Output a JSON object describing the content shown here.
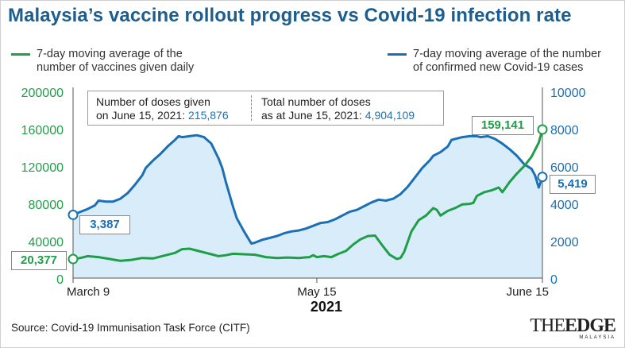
{
  "title": "Malaysia’s vaccine rollout progress vs Covid-19 infection rate",
  "legend": {
    "vaccines_line1": "7-day moving average of the",
    "vaccines_line2": "number of vaccines given daily",
    "cases_line1": "7-day moving average of the number",
    "cases_line2": "of confirmed new Covid-19 cases"
  },
  "colors": {
    "vaccines": "#1f9e48",
    "cases": "#1a6fb5",
    "cases_fill": "#d8ecfa",
    "title": "#1d5e8e"
  },
  "info": {
    "doses_label1": "Number of doses given",
    "doses_label2": "on June 15, 2021: ",
    "doses_value": "215,876",
    "total_label1": "Total number of doses",
    "total_label2": "as at June 15, 2021: ",
    "total_value": "4,904,109"
  },
  "callouts": {
    "vaccine_start": "20,377",
    "vaccine_end": "159,141",
    "cases_start": "3,387",
    "cases_end": "5,419"
  },
  "x_axis": {
    "labels": [
      "March 9",
      "May 15",
      "June 15"
    ],
    "year": "2021"
  },
  "source": "Source: Covid-19 Immunisation Task Force (CITF)",
  "logo": {
    "word_a": "THE",
    "word_b": "EDGE",
    "sub": "MALAYSIA"
  },
  "chart_data": {
    "type": "line",
    "title": "Malaysia’s vaccine rollout progress vs Covid-19 infection rate",
    "x_range": [
      "2021-03-09",
      "2021-06-15"
    ],
    "x_ticks": [
      "March 9",
      "May 15",
      "June 15"
    ],
    "y_left": {
      "label": "",
      "ylim": [
        0,
        200000
      ],
      "ticks": [
        "0",
        "40000",
        "80000",
        "120000",
        "160000",
        "200000"
      ]
    },
    "y_right": {
      "label": "",
      "ylim": [
        0,
        10000
      ],
      "ticks": [
        "0",
        "2000",
        "4000",
        "6000",
        "8000",
        "10000"
      ]
    },
    "grid": false,
    "legend_position": "top",
    "series": [
      {
        "name": "7-day moving average of the number of vaccines given daily",
        "axis": "left",
        "color": "#1f9e48",
        "points": [
          [
            0,
            20377
          ],
          [
            2,
            21500
          ],
          [
            4,
            23500
          ],
          [
            7,
            22500
          ],
          [
            10,
            20500
          ],
          [
            13,
            18500
          ],
          [
            16,
            19500
          ],
          [
            19,
            21500
          ],
          [
            22,
            21000
          ],
          [
            25,
            24000
          ],
          [
            28,
            27000
          ],
          [
            30,
            31000
          ],
          [
            32,
            31500
          ],
          [
            35,
            28500
          ],
          [
            38,
            25500
          ],
          [
            40,
            23500
          ],
          [
            42,
            24500
          ],
          [
            44,
            26000
          ],
          [
            47,
            25500
          ],
          [
            50,
            25000
          ],
          [
            53,
            22500
          ],
          [
            56,
            21500
          ],
          [
            59,
            22000
          ],
          [
            62,
            21500
          ],
          [
            65,
            22500
          ],
          [
            66,
            24500
          ],
          [
            67,
            22500
          ],
          [
            69,
            23500
          ],
          [
            71,
            22500
          ],
          [
            73,
            26000
          ],
          [
            75,
            29000
          ],
          [
            77,
            36000
          ],
          [
            79,
            41500
          ],
          [
            81,
            45000
          ],
          [
            83,
            45500
          ],
          [
            85,
            35000
          ],
          [
            87,
            25000
          ],
          [
            89,
            20500
          ],
          [
            90,
            21500
          ],
          [
            91,
            28000
          ],
          [
            93,
            50000
          ],
          [
            95,
            62000
          ],
          [
            97,
            67000
          ],
          [
            99,
            75000
          ],
          [
            100,
            73000
          ],
          [
            101,
            67000
          ],
          [
            103,
            72000
          ],
          [
            105,
            75000
          ],
          [
            107,
            79000
          ],
          [
            109,
            79500
          ],
          [
            110,
            80500
          ],
          [
            111,
            88000
          ],
          [
            113,
            92000
          ],
          [
            115,
            94000
          ],
          [
            117,
            97000
          ],
          [
            118,
            92000
          ],
          [
            120,
            103000
          ],
          [
            122,
            112000
          ],
          [
            124,
            120000
          ],
          [
            126,
            130000
          ],
          [
            128,
            145000
          ],
          [
            129,
            159141
          ]
        ]
      },
      {
        "name": "7-day moving average of the number of confirmed new Covid-19 cases",
        "axis": "right",
        "color": "#1a6fb5",
        "points": [
          [
            0,
            3387
          ],
          [
            2,
            3550
          ],
          [
            4,
            3700
          ],
          [
            6,
            3900
          ],
          [
            7,
            4150
          ],
          [
            9,
            4100
          ],
          [
            11,
            4100
          ],
          [
            13,
            4250
          ],
          [
            15,
            4550
          ],
          [
            17,
            5000
          ],
          [
            19,
            5500
          ],
          [
            20,
            5900
          ],
          [
            22,
            6300
          ],
          [
            24,
            6650
          ],
          [
            26,
            7050
          ],
          [
            28,
            7400
          ],
          [
            29,
            7600
          ],
          [
            30,
            7550
          ],
          [
            32,
            7600
          ],
          [
            34,
            7650
          ],
          [
            36,
            7550
          ],
          [
            38,
            7200
          ],
          [
            40,
            6400
          ],
          [
            41,
            5900
          ],
          [
            42,
            5150
          ],
          [
            44,
            3800
          ],
          [
            45,
            3200
          ],
          [
            47,
            2500
          ],
          [
            49,
            1850
          ],
          [
            50,
            1900
          ],
          [
            52,
            2050
          ],
          [
            54,
            2150
          ],
          [
            56,
            2250
          ],
          [
            58,
            2400
          ],
          [
            60,
            2500
          ],
          [
            62,
            2550
          ],
          [
            64,
            2650
          ],
          [
            66,
            2800
          ],
          [
            68,
            2950
          ],
          [
            70,
            3000
          ],
          [
            72,
            3150
          ],
          [
            74,
            3350
          ],
          [
            76,
            3550
          ],
          [
            78,
            3650
          ],
          [
            80,
            3850
          ],
          [
            82,
            4050
          ],
          [
            84,
            4200
          ],
          [
            86,
            4150
          ],
          [
            88,
            4250
          ],
          [
            90,
            4500
          ],
          [
            92,
            4900
          ],
          [
            94,
            5400
          ],
          [
            96,
            5900
          ],
          [
            98,
            6300
          ],
          [
            99,
            6550
          ],
          [
            101,
            6750
          ],
          [
            103,
            7050
          ],
          [
            104,
            7400
          ],
          [
            105,
            7450
          ],
          [
            107,
            7550
          ],
          [
            109,
            7600
          ],
          [
            111,
            7600
          ],
          [
            112,
            7550
          ],
          [
            114,
            7600
          ],
          [
            116,
            7450
          ],
          [
            118,
            7200
          ],
          [
            120,
            6900
          ],
          [
            122,
            6550
          ],
          [
            124,
            6100
          ],
          [
            126,
            5850
          ],
          [
            127,
            5500
          ],
          [
            128,
            4850
          ],
          [
            129,
            5419
          ]
        ]
      }
    ]
  }
}
